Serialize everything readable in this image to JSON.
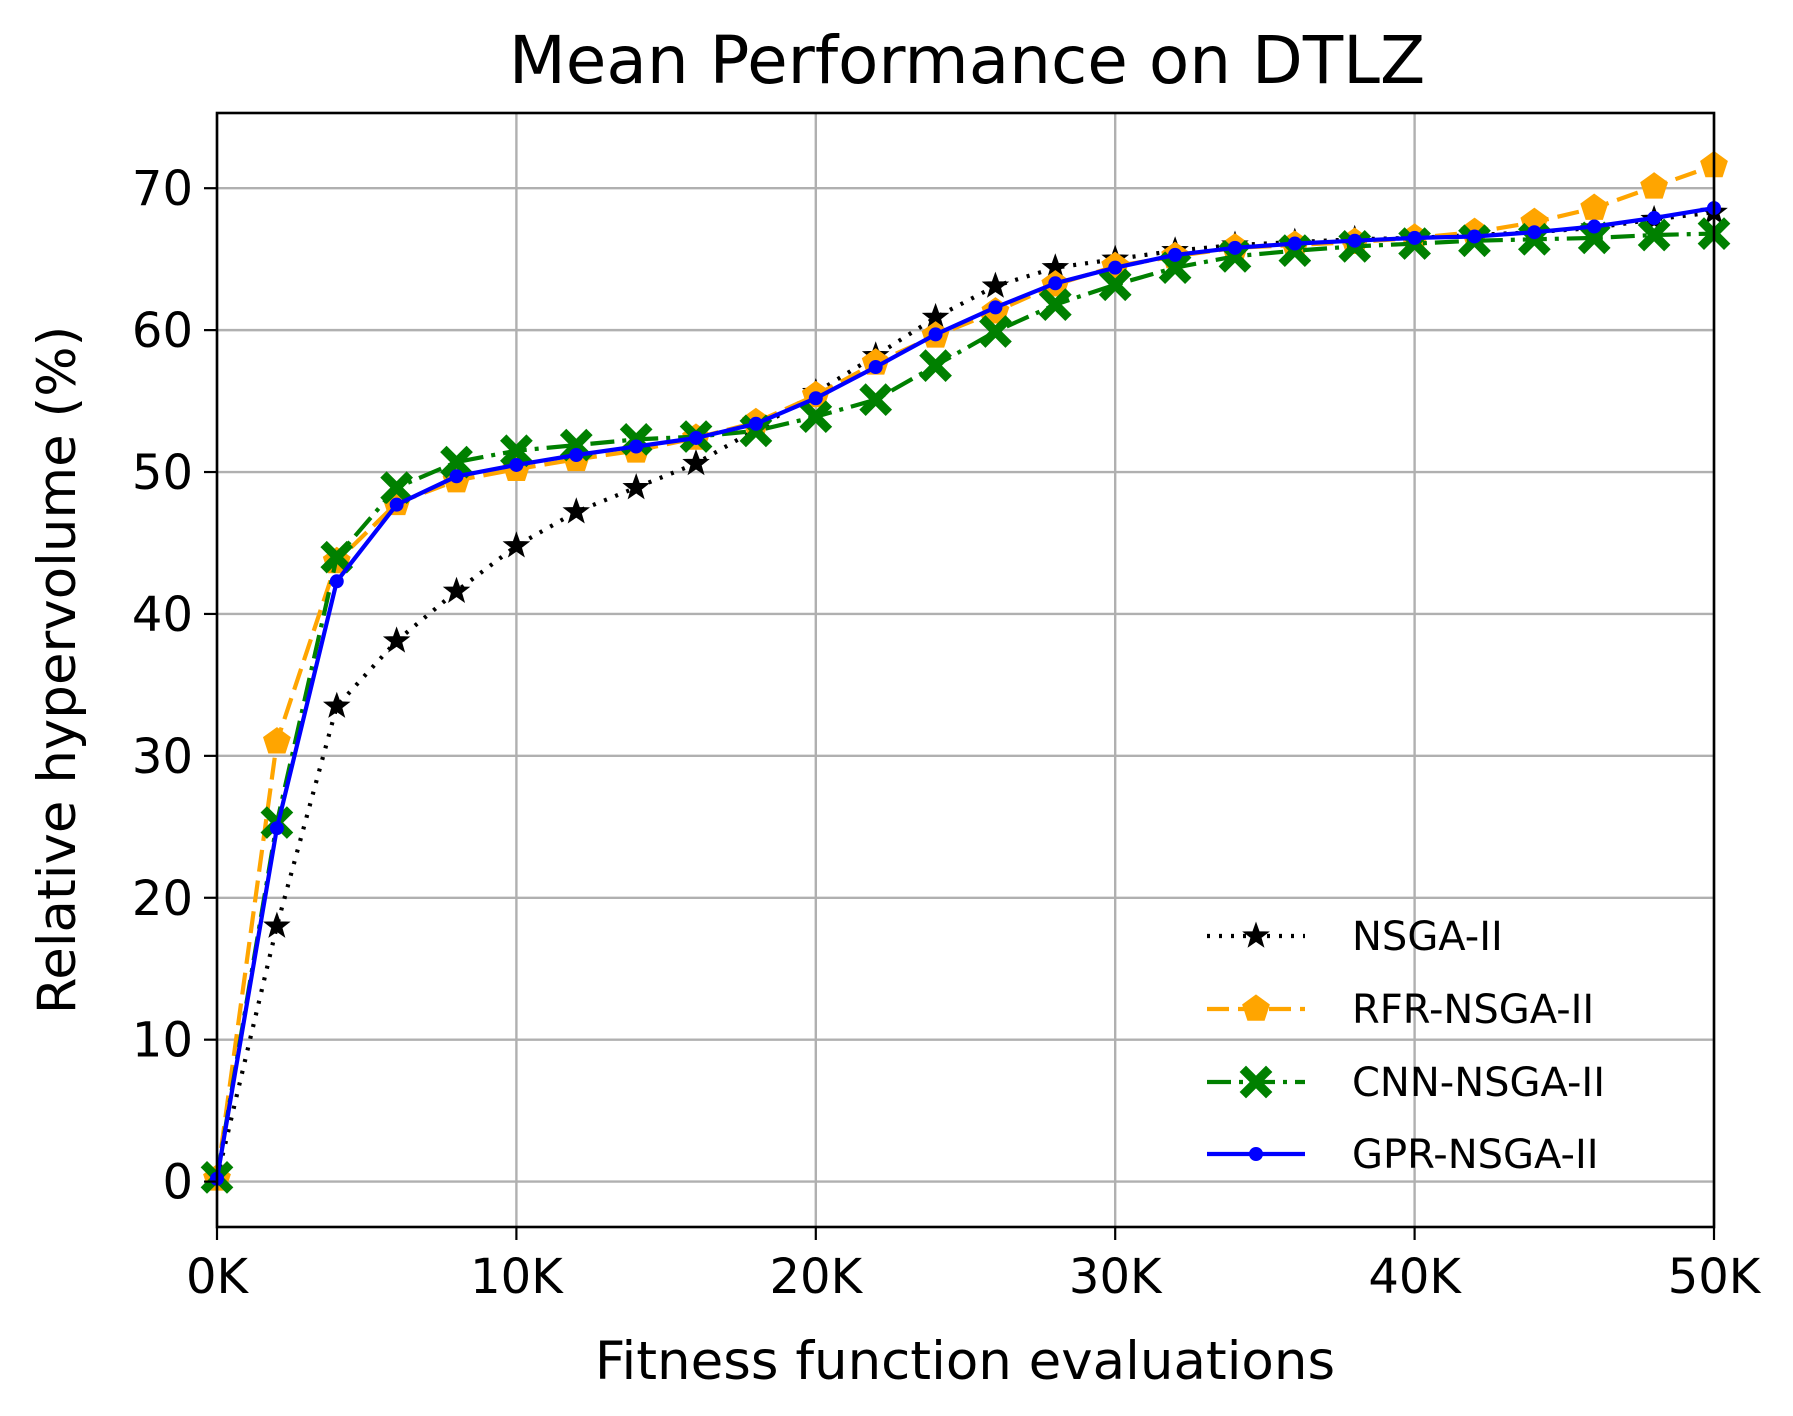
{
  "chart_data": {
    "type": "line",
    "title": "Mean Performance on DTLZ",
    "xlabel": "Fitness function evaluations",
    "ylabel": "Relative hypervolume (%)",
    "xlim": [
      0,
      50000
    ],
    "ylim": [
      -3.2,
      75.3
    ],
    "x_ticks": [
      0,
      10000,
      20000,
      30000,
      40000,
      50000
    ],
    "x_tick_labels": [
      "0K",
      "10K",
      "20K",
      "30K",
      "40K",
      "50K"
    ],
    "y_ticks": [
      0,
      10,
      20,
      30,
      40,
      50,
      60,
      70
    ],
    "y_tick_labels": [
      "0",
      "10",
      "20",
      "30",
      "40",
      "50",
      "60",
      "70"
    ],
    "grid": true,
    "legend_position": "lower-right",
    "x": [
      0,
      2000,
      4000,
      6000,
      8000,
      10000,
      12000,
      14000,
      16000,
      18000,
      20000,
      22000,
      24000,
      26000,
      28000,
      30000,
      32000,
      34000,
      36000,
      38000,
      40000,
      42000,
      44000,
      46000,
      48000,
      50000
    ],
    "series": [
      {
        "name": "NSGA-II",
        "color": "#000000",
        "line_style": "dotted",
        "marker": "star",
        "values": [
          0.2,
          18.0,
          33.5,
          38.1,
          41.6,
          44.8,
          47.2,
          48.9,
          50.6,
          53.0,
          55.6,
          58.2,
          60.9,
          63.1,
          64.4,
          65.0,
          65.6,
          66.0,
          66.2,
          66.4,
          66.5,
          66.7,
          66.9,
          67.2,
          67.8,
          68.3
        ]
      },
      {
        "name": "RFR-NSGA-II",
        "color": "#ffa500",
        "line_style": "dashed",
        "marker": "pentagon",
        "values": [
          0.2,
          31.0,
          43.7,
          47.8,
          49.4,
          50.2,
          50.9,
          51.5,
          52.4,
          53.5,
          55.4,
          57.7,
          59.6,
          61.3,
          63.2,
          64.5,
          65.2,
          65.8,
          66.0,
          66.2,
          66.5,
          66.9,
          67.6,
          68.6,
          70.1,
          71.6
        ]
      },
      {
        "name": "CNN-NSGA-II",
        "color": "#008000",
        "line_style": "dash-dot",
        "marker": "x-filled",
        "values": [
          0.3,
          25.3,
          44.0,
          48.9,
          50.7,
          51.5,
          51.9,
          52.3,
          52.5,
          52.9,
          53.9,
          55.1,
          57.5,
          59.9,
          61.8,
          63.2,
          64.4,
          65.2,
          65.6,
          65.9,
          66.1,
          66.3,
          66.4,
          66.5,
          66.7,
          66.8
        ]
      },
      {
        "name": "GPR-NSGA-II",
        "color": "#0000ff",
        "line_style": "solid",
        "marker": "dot",
        "values": [
          0.2,
          24.9,
          42.3,
          47.7,
          49.7,
          50.5,
          51.2,
          51.8,
          52.4,
          53.4,
          55.2,
          57.4,
          59.7,
          61.6,
          63.3,
          64.4,
          65.3,
          65.8,
          66.1,
          66.3,
          66.5,
          66.6,
          66.9,
          67.3,
          67.9,
          68.6
        ]
      }
    ]
  }
}
